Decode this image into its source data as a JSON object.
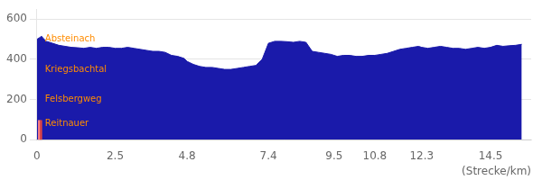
{
  "chart_data": {
    "type": "area",
    "xlabel": "(Strecke/km)",
    "x": [
      0.0,
      0.1,
      0.15,
      0.2,
      0.3,
      0.5,
      0.7,
      0.9,
      1.1,
      1.3,
      1.5,
      1.7,
      1.9,
      2.1,
      2.3,
      2.5,
      2.7,
      2.9,
      3.1,
      3.3,
      3.5,
      3.7,
      3.9,
      4.1,
      4.3,
      4.5,
      4.7,
      4.8,
      5.0,
      5.2,
      5.4,
      5.6,
      5.8,
      6.0,
      6.2,
      6.4,
      6.6,
      6.8,
      7.0,
      7.2,
      7.4,
      7.6,
      7.8,
      8.0,
      8.2,
      8.4,
      8.6,
      8.8,
      9.0,
      9.2,
      9.4,
      9.5,
      9.6,
      9.8,
      10.0,
      10.2,
      10.4,
      10.6,
      10.8,
      11.0,
      11.2,
      11.4,
      11.6,
      11.8,
      12.0,
      12.2,
      12.3,
      12.5,
      12.7,
      12.9,
      13.1,
      13.3,
      13.5,
      13.7,
      13.9,
      14.1,
      14.3,
      14.5,
      14.7,
      14.9,
      15.1,
      15.3,
      15.5
    ],
    "values": [
      500,
      510,
      515,
      505,
      490,
      480,
      470,
      465,
      460,
      458,
      455,
      460,
      455,
      460,
      460,
      455,
      455,
      460,
      455,
      450,
      445,
      440,
      440,
      435,
      420,
      415,
      405,
      390,
      375,
      365,
      360,
      360,
      355,
      350,
      350,
      355,
      360,
      365,
      370,
      400,
      480,
      490,
      490,
      488,
      485,
      490,
      485,
      440,
      435,
      430,
      425,
      420,
      415,
      420,
      420,
      415,
      415,
      420,
      420,
      425,
      430,
      440,
      450,
      455,
      460,
      465,
      460,
      455,
      460,
      465,
      460,
      455,
      455,
      450,
      455,
      460,
      455,
      460,
      470,
      465,
      468,
      470,
      475
    ],
    "color": "#1a1aaa",
    "xlim": [
      0,
      15.8
    ],
    "ylim": [
      0,
      650
    ],
    "xticks": [
      0,
      2.5,
      4.8,
      7.4,
      9.5,
      10.8,
      12.3,
      14.5
    ],
    "yticks": [
      0,
      200,
      400,
      600
    ],
    "grid": true,
    "annotations": [
      {
        "text": "Absteinach",
        "x": 0.17,
        "y": 500,
        "color": "#ff8c00"
      },
      {
        "text": "Kriegsbachtal",
        "x": 0.17,
        "y": 350,
        "color": "#ff8c00"
      },
      {
        "text": "Felsbergweg",
        "x": 0.17,
        "y": 200,
        "color": "#ff8c00"
      },
      {
        "text": "Reitnauer",
        "x": 0.17,
        "y": 80,
        "color": "#ff8c00"
      }
    ],
    "vlines": [
      {
        "x": 0.07,
        "color": "#ff8080"
      },
      {
        "x": 0.13,
        "color": "#dd4444"
      }
    ]
  }
}
